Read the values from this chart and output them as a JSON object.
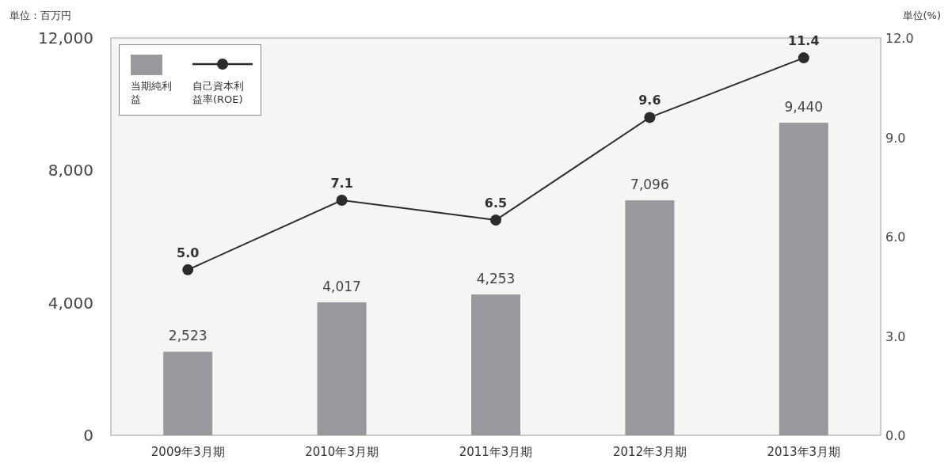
{
  "chart_data": {
    "type": "bar",
    "ylabel": "単位：百万円",
    "y2label": "単位(%)",
    "categories": [
      "2009年3月期",
      "2010年3月期",
      "2011年3月期",
      "2012年3月期",
      "2013年3月期"
    ],
    "series": [
      {
        "name": "当期純利益",
        "color": "#98999d",
        "values": [
          2523,
          4017,
          4253,
          7096,
          9440
        ],
        "value_labels": [
          "2,523",
          "4,017",
          "4,253",
          "7,096",
          "9,440"
        ]
      },
      {
        "name": "自己資本利益率(ROE)",
        "type": "line",
        "axis": "y2",
        "color": "#2b2b2b",
        "values": [
          5.0,
          7.1,
          6.5,
          9.6,
          11.4
        ],
        "value_labels": [
          "5.0",
          "7.1",
          "6.5",
          "9.6",
          "11.4"
        ]
      }
    ],
    "ylim": [
      0,
      12000
    ],
    "yticks": [
      0,
      {
        "value": 4000,
        "label": "4,000"
      },
      {
        "value": 8000,
        "label": "8,000"
      },
      {
        "value": 12000,
        "label": "12,000"
      }
    ],
    "y2lim": [
      0,
      12
    ],
    "y2ticks": [
      {
        "value": 0,
        "label": "0.0"
      },
      {
        "value": 3,
        "label": "3.0"
      },
      {
        "value": 6,
        "label": "6.0"
      },
      {
        "value": 9,
        "label": "9.0"
      },
      {
        "value": 12,
        "label": "12.0"
      }
    ],
    "legend": "top left",
    "marker": "circle"
  }
}
